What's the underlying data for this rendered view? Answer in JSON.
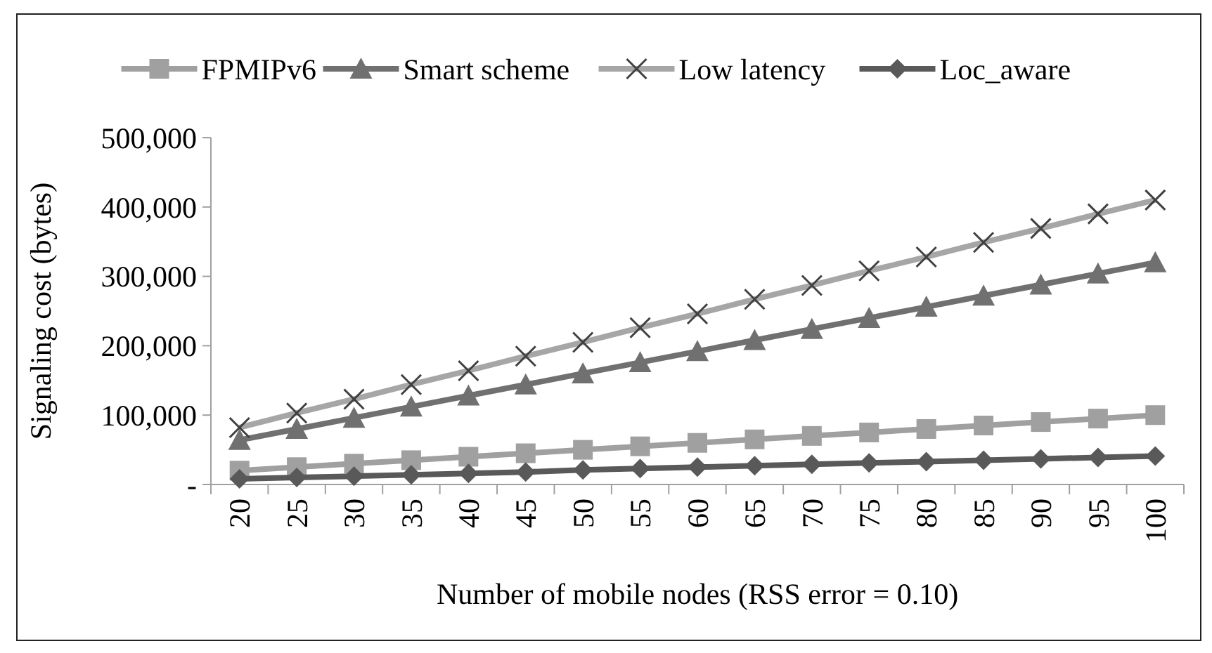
{
  "chart_data": {
    "type": "line",
    "xlabel": "Number of mobile nodes (RSS error = 0.10)",
    "ylabel": "Signaling cost (bytes)",
    "categories": [
      "20",
      "25",
      "30",
      "35",
      "40",
      "45",
      "50",
      "55",
      "60",
      "65",
      "70",
      "75",
      "80",
      "85",
      "90",
      "95",
      "100"
    ],
    "series": [
      {
        "name": "FPMIPv6",
        "color": "#a0a0a0",
        "marker": "square",
        "values": [
          20000,
          25000,
          30000,
          35000,
          40000,
          45000,
          50000,
          55000,
          60000,
          65000,
          70000,
          75000,
          80000,
          85000,
          90000,
          95000,
          100000
        ]
      },
      {
        "name": "Smart scheme",
        "color": "#707070",
        "marker": "triangle",
        "values": [
          64000,
          80000,
          96000,
          112000,
          128000,
          144000,
          160000,
          176000,
          192000,
          208000,
          224000,
          240000,
          256000,
          272000,
          288000,
          304000,
          320000
        ]
      },
      {
        "name": "Low latency",
        "color": "#a6a6a6",
        "marker": "cross",
        "values": [
          82000,
          103000,
          123000,
          144000,
          164000,
          185000,
          205000,
          226000,
          246000,
          267000,
          287000,
          308000,
          328000,
          349000,
          369000,
          390000,
          410000
        ]
      },
      {
        "name": "Loc_aware",
        "color": "#595959",
        "marker": "diamond",
        "values": [
          8000,
          10000,
          12000,
          14000,
          16000,
          18000,
          21000,
          23000,
          25000,
          27000,
          29000,
          31000,
          33000,
          35000,
          37000,
          39000,
          41000
        ]
      }
    ],
    "ylim": [
      0,
      500000
    ],
    "yticks": [
      {
        "value": 0,
        "label": "-"
      },
      {
        "value": 100000,
        "label": "100,000"
      },
      {
        "value": 200000,
        "label": "200,000"
      },
      {
        "value": 300000,
        "label": "300,000"
      },
      {
        "value": 400000,
        "label": "400,000"
      },
      {
        "value": 500000,
        "label": "500,000"
      }
    ],
    "grid": false,
    "legend": "top",
    "line_style": "solid"
  }
}
